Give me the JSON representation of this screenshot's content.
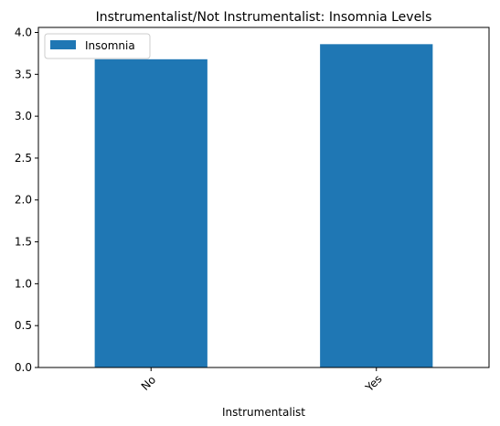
{
  "chart_data": {
    "type": "bar",
    "title": "Instrumentalist/Not Instrumentalist: Insomnia Levels",
    "xlabel": "Instrumentalist",
    "ylabel": "",
    "categories": [
      "No",
      "Yes"
    ],
    "series": [
      {
        "name": "Insomnia",
        "values": [
          3.68,
          3.86
        ],
        "color": "#1f77b4"
      }
    ],
    "ylim": [
      0,
      4.06
    ],
    "yticks": [
      "0.0",
      "0.5",
      "1.0",
      "1.5",
      "2.0",
      "2.5",
      "3.0",
      "3.5",
      "4.0"
    ],
    "grid": false,
    "legend": "top-left"
  }
}
